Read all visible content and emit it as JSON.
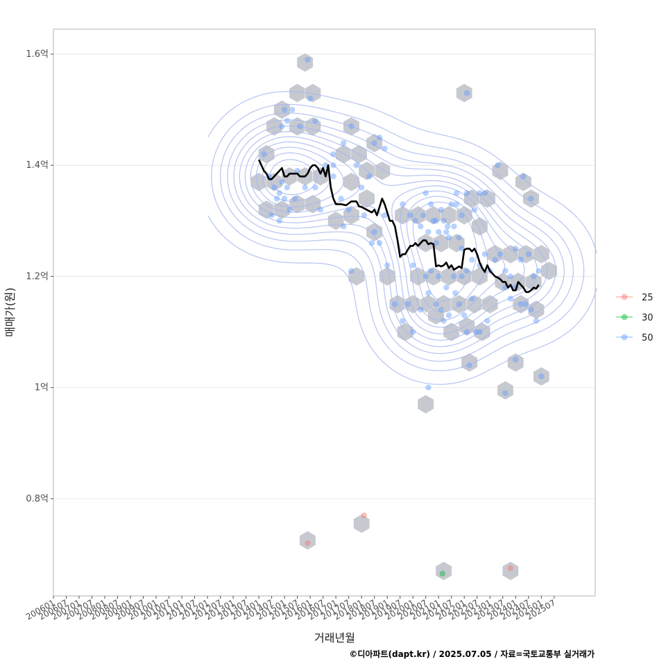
{
  "chart_data": {
    "type": "scatter",
    "title": "",
    "xlabel": "거래년월",
    "ylabel": "매매가(원)",
    "caption": "©디아파트(dapt.kr) / 2025.07.05 / 자료=국토교통부 실거래가",
    "ylim": [
      0.625,
      1.645
    ],
    "y_ticks": [
      {
        "value": 0.8,
        "label": "0.8억"
      },
      {
        "value": 1.0,
        "label": "1억"
      },
      {
        "value": 1.2,
        "label": "1.2억"
      },
      {
        "value": 1.4,
        "label": "1.4억"
      },
      {
        "value": 1.6,
        "label": "1.6억"
      }
    ],
    "x_ticks": [
      "200601",
      "200607",
      "200701",
      "200707",
      "200801",
      "200807",
      "200901",
      "200907",
      "201001",
      "201007",
      "201101",
      "201107",
      "201201",
      "201207",
      "201301",
      "201307",
      "201401",
      "201407",
      "201501",
      "201507",
      "201601",
      "201607",
      "201701",
      "201707",
      "201801",
      "201807",
      "201901",
      "201907",
      "202001",
      "202007",
      "202101",
      "202107",
      "202201",
      "202207",
      "202301",
      "202307",
      "202401",
      "202407",
      "202501",
      "202507"
    ],
    "legend": {
      "position": "right",
      "entries": [
        {
          "label": "25",
          "color": "#F8766D"
        },
        {
          "label": "30",
          "color": "#00BA38"
        },
        {
          "label": "50",
          "color": "#619CFF"
        }
      ]
    },
    "series": [
      {
        "name": "25",
        "color": "#F8766D",
        "points": [
          [
            2015.9,
            0.72
          ],
          [
            2018.1,
            0.77
          ],
          [
            2023.8,
            0.675
          ]
        ]
      },
      {
        "name": "30",
        "color": "#00BA38",
        "points": [
          [
            2021.15,
            0.665
          ]
        ]
      },
      {
        "name": "50",
        "color": "#619CFF",
        "points": [
          [
            2015.9,
            1.59
          ],
          [
            2016.0,
            1.52
          ],
          [
            2016.2,
            1.48
          ],
          [
            2015.6,
            1.47
          ],
          [
            2015.3,
            1.5
          ],
          [
            2015.1,
            1.48
          ],
          [
            2014.9,
            1.47
          ],
          [
            2015.0,
            1.5
          ],
          [
            2014.2,
            1.42
          ],
          [
            2014.4,
            1.38
          ],
          [
            2014.6,
            1.36
          ],
          [
            2014.7,
            1.34
          ],
          [
            2014.8,
            1.35
          ],
          [
            2014.9,
            1.37
          ],
          [
            2015.1,
            1.36
          ],
          [
            2015.2,
            1.32
          ],
          [
            2015.4,
            1.34
          ],
          [
            2015.0,
            1.34
          ],
          [
            2014.5,
            1.31
          ],
          [
            2014.8,
            1.3
          ],
          [
            2015.5,
            1.39
          ],
          [
            2015.8,
            1.36
          ],
          [
            2016.2,
            1.36
          ],
          [
            2016.4,
            1.32
          ],
          [
            2016.6,
            1.4
          ],
          [
            2016.9,
            1.4
          ],
          [
            2016.9,
            1.38
          ],
          [
            2017.3,
            1.44
          ],
          [
            2017.6,
            1.47
          ],
          [
            2017.8,
            1.4
          ],
          [
            2018.0,
            1.36
          ],
          [
            2018.3,
            1.38
          ],
          [
            2018.5,
            1.44
          ],
          [
            2018.7,
            1.45
          ],
          [
            2018.9,
            1.43
          ],
          [
            2018.1,
            1.31
          ],
          [
            2017.5,
            1.32
          ],
          [
            2017.2,
            1.34
          ],
          [
            2017.3,
            1.29
          ],
          [
            2018.5,
            1.28
          ],
          [
            2018.7,
            1.26
          ],
          [
            2018.9,
            1.31
          ],
          [
            2018.4,
            1.26
          ],
          [
            2019.0,
            1.22
          ],
          [
            2017.6,
            1.21
          ],
          [
            2016.9,
            1.42
          ],
          [
            2019.6,
            1.33
          ],
          [
            2019.9,
            1.31
          ],
          [
            2020.1,
            1.3
          ],
          [
            2020.3,
            1.29
          ],
          [
            2020.5,
            1.35
          ],
          [
            2020.7,
            1.33
          ],
          [
            2020.9,
            1.3
          ],
          [
            2021.1,
            1.32
          ],
          [
            2021.3,
            1.28
          ],
          [
            2021.5,
            1.33
          ],
          [
            2021.7,
            1.35
          ],
          [
            2021.9,
            1.31
          ],
          [
            2022.1,
            1.35
          ],
          [
            2022.4,
            1.32
          ],
          [
            2022.6,
            1.35
          ],
          [
            2022.8,
            1.35
          ],
          [
            2020.4,
            1.31
          ],
          [
            2020.6,
            1.28
          ],
          [
            2020.8,
            1.3
          ],
          [
            2021.0,
            1.28
          ],
          [
            2021.2,
            1.3
          ],
          [
            2021.4,
            1.27
          ],
          [
            2021.6,
            1.29
          ],
          [
            2021.8,
            1.27
          ],
          [
            2021.7,
            1.33
          ],
          [
            2021.35,
            1.29
          ],
          [
            2020.9,
            1.26
          ],
          [
            2021.9,
            1.25
          ],
          [
            2020.0,
            1.22
          ],
          [
            2020.5,
            1.2
          ],
          [
            2020.7,
            1.21
          ],
          [
            2021.0,
            1.2
          ],
          [
            2021.3,
            1.18
          ],
          [
            2021.6,
            1.2
          ],
          [
            2021.9,
            1.2
          ],
          [
            2022.1,
            1.21
          ],
          [
            2022.3,
            1.23
          ],
          [
            2022.6,
            1.22
          ],
          [
            2022.8,
            1.24
          ],
          [
            2023.0,
            1.21
          ],
          [
            2023.2,
            1.23
          ],
          [
            2023.4,
            1.24
          ],
          [
            2023.6,
            1.21
          ],
          [
            2023.8,
            1.2
          ],
          [
            2024.0,
            1.25
          ],
          [
            2024.2,
            1.23
          ],
          [
            2024.5,
            1.24
          ],
          [
            2024.9,
            1.21
          ],
          [
            2023.6,
            1.18
          ],
          [
            2023.8,
            1.16
          ],
          [
            2024.0,
            1.18
          ],
          [
            2024.2,
            1.15
          ],
          [
            2024.4,
            1.15
          ],
          [
            2024.7,
            1.2
          ],
          [
            2019.3,
            1.15
          ],
          [
            2019.6,
            1.12
          ],
          [
            2019.8,
            1.15
          ],
          [
            2020.0,
            1.1
          ],
          [
            2020.3,
            1.14
          ],
          [
            2020.6,
            1.17
          ],
          [
            2020.9,
            1.15
          ],
          [
            2021.1,
            1.14
          ],
          [
            2021.2,
            1.12
          ],
          [
            2021.4,
            1.13
          ],
          [
            2021.65,
            1.17
          ],
          [
            2021.8,
            1.15
          ],
          [
            2022.0,
            1.13
          ],
          [
            2022.3,
            1.16
          ],
          [
            2022.6,
            1.1
          ],
          [
            2022.9,
            1.12
          ],
          [
            2022.1,
            1.1
          ],
          [
            2022.45,
            1.1
          ],
          [
            2024.6,
            1.14
          ],
          [
            2024.8,
            1.12
          ],
          [
            2022.1,
            1.53
          ],
          [
            2023.3,
            1.4
          ],
          [
            2024.3,
            1.38
          ],
          [
            2024.6,
            1.34
          ],
          [
            2020.6,
            1.0
          ],
          [
            2022.2,
            1.04
          ],
          [
            2024.0,
            1.05
          ],
          [
            2023.6,
            0.99
          ],
          [
            2025.0,
            1.02
          ]
        ]
      }
    ],
    "trend_line": [
      [
        2014.0,
        1.41
      ],
      [
        2014.1,
        1.4
      ],
      [
        2014.2,
        1.39
      ],
      [
        2014.3,
        1.385
      ],
      [
        2014.4,
        1.375
      ],
      [
        2014.5,
        1.375
      ],
      [
        2014.6,
        1.38
      ],
      [
        2014.7,
        1.385
      ],
      [
        2014.8,
        1.39
      ],
      [
        2014.9,
        1.395
      ],
      [
        2015.0,
        1.38
      ],
      [
        2015.1,
        1.38
      ],
      [
        2015.2,
        1.385
      ],
      [
        2015.3,
        1.385
      ],
      [
        2015.4,
        1.385
      ],
      [
        2015.5,
        1.385
      ],
      [
        2015.6,
        1.38
      ],
      [
        2015.7,
        1.38
      ],
      [
        2015.8,
        1.38
      ],
      [
        2015.9,
        1.385
      ],
      [
        2016.0,
        1.395
      ],
      [
        2016.1,
        1.4
      ],
      [
        2016.2,
        1.4
      ],
      [
        2016.3,
        1.395
      ],
      [
        2016.4,
        1.385
      ],
      [
        2016.5,
        1.395
      ],
      [
        2016.6,
        1.38
      ],
      [
        2016.7,
        1.4
      ],
      [
        2016.8,
        1.36
      ],
      [
        2016.9,
        1.34
      ],
      [
        2017.0,
        1.33
      ],
      [
        2017.2,
        1.33
      ],
      [
        2017.4,
        1.328
      ],
      [
        2017.6,
        1.335
      ],
      [
        2017.8,
        1.335
      ],
      [
        2017.9,
        1.326
      ],
      [
        2018.0,
        1.325
      ],
      [
        2018.2,
        1.32
      ],
      [
        2018.4,
        1.315
      ],
      [
        2018.5,
        1.32
      ],
      [
        2018.6,
        1.31
      ],
      [
        2018.7,
        1.325
      ],
      [
        2018.8,
        1.34
      ],
      [
        2018.9,
        1.33
      ],
      [
        2019.0,
        1.315
      ],
      [
        2019.1,
        1.3
      ],
      [
        2019.2,
        1.3
      ],
      [
        2019.3,
        1.29
      ],
      [
        2019.4,
        1.265
      ],
      [
        2019.5,
        1.235
      ],
      [
        2019.6,
        1.24
      ],
      [
        2019.7,
        1.24
      ],
      [
        2019.8,
        1.248
      ],
      [
        2019.9,
        1.255
      ],
      [
        2020.0,
        1.255
      ],
      [
        2020.1,
        1.26
      ],
      [
        2020.2,
        1.255
      ],
      [
        2020.3,
        1.26
      ],
      [
        2020.4,
        1.265
      ],
      [
        2020.5,
        1.265
      ],
      [
        2020.6,
        1.258
      ],
      [
        2020.7,
        1.26
      ],
      [
        2020.8,
        1.258
      ],
      [
        2020.9,
        1.218
      ],
      [
        2021.0,
        1.22
      ],
      [
        2021.1,
        1.218
      ],
      [
        2021.2,
        1.22
      ],
      [
        2021.3,
        1.225
      ],
      [
        2021.4,
        1.215
      ],
      [
        2021.5,
        1.22
      ],
      [
        2021.6,
        1.212
      ],
      [
        2021.7,
        1.215
      ],
      [
        2021.8,
        1.218
      ],
      [
        2021.9,
        1.215
      ],
      [
        2022.0,
        1.248
      ],
      [
        2022.1,
        1.25
      ],
      [
        2022.2,
        1.25
      ],
      [
        2022.3,
        1.245
      ],
      [
        2022.4,
        1.25
      ],
      [
        2022.5,
        1.24
      ],
      [
        2022.6,
        1.225
      ],
      [
        2022.7,
        1.215
      ],
      [
        2022.8,
        1.208
      ],
      [
        2022.9,
        1.22
      ],
      [
        2023.0,
        1.21
      ],
      [
        2023.1,
        1.205
      ],
      [
        2023.2,
        1.2
      ],
      [
        2023.3,
        1.198
      ],
      [
        2023.4,
        1.195
      ],
      [
        2023.5,
        1.19
      ],
      [
        2023.6,
        1.19
      ],
      [
        2023.7,
        1.18
      ],
      [
        2023.8,
        1.185
      ],
      [
        2023.9,
        1.175
      ],
      [
        2024.0,
        1.175
      ],
      [
        2024.1,
        1.19
      ],
      [
        2024.2,
        1.185
      ],
      [
        2024.3,
        1.18
      ],
      [
        2024.4,
        1.172
      ],
      [
        2024.5,
        1.172
      ],
      [
        2024.6,
        1.175
      ],
      [
        2024.7,
        1.18
      ],
      [
        2024.8,
        1.178
      ],
      [
        2024.9,
        1.185
      ]
    ],
    "hex_bins": [
      [
        2015.8,
        1.585
      ],
      [
        2015.5,
        1.53
      ],
      [
        2016.1,
        1.53
      ],
      [
        2014.9,
        1.5
      ],
      [
        2015.5,
        1.47
      ],
      [
        2016.1,
        1.47
      ],
      [
        2014.6,
        1.47
      ],
      [
        2014.3,
        1.42
      ],
      [
        2014.0,
        1.37
      ],
      [
        2014.6,
        1.37
      ],
      [
        2014.3,
        1.32
      ],
      [
        2015.2,
        1.38
      ],
      [
        2015.8,
        1.38
      ],
      [
        2016.4,
        1.38
      ],
      [
        2015.5,
        1.33
      ],
      [
        2016.1,
        1.33
      ],
      [
        2014.9,
        1.32
      ],
      [
        2017.6,
        1.47
      ],
      [
        2017.3,
        1.42
      ],
      [
        2017.9,
        1.42
      ],
      [
        2018.5,
        1.44
      ],
      [
        2018.8,
        1.39
      ],
      [
        2018.2,
        1.39
      ],
      [
        2017.6,
        1.37
      ],
      [
        2018.2,
        1.34
      ],
      [
        2017.0,
        1.3
      ],
      [
        2017.6,
        1.31
      ],
      [
        2018.5,
        1.28
      ],
      [
        2017.8,
        1.2
      ],
      [
        2019.0,
        1.2
      ],
      [
        2019.6,
        1.31
      ],
      [
        2020.2,
        1.31
      ],
      [
        2020.8,
        1.31
      ],
      [
        2021.4,
        1.31
      ],
      [
        2022.0,
        1.31
      ],
      [
        2020.5,
        1.26
      ],
      [
        2021.1,
        1.26
      ],
      [
        2021.7,
        1.26
      ],
      [
        2022.3,
        1.34
      ],
      [
        2022.9,
        1.34
      ],
      [
        2022.6,
        1.29
      ],
      [
        2023.4,
        1.39
      ],
      [
        2024.3,
        1.37
      ],
      [
        2024.6,
        1.34
      ],
      [
        2020.2,
        1.2
      ],
      [
        2020.8,
        1.2
      ],
      [
        2021.4,
        1.2
      ],
      [
        2022.0,
        1.2
      ],
      [
        2022.6,
        1.2
      ],
      [
        2023.2,
        1.24
      ],
      [
        2023.8,
        1.24
      ],
      [
        2024.4,
        1.24
      ],
      [
        2025.0,
        1.24
      ],
      [
        2023.5,
        1.19
      ],
      [
        2024.1,
        1.19
      ],
      [
        2024.7,
        1.19
      ],
      [
        2025.3,
        1.21
      ],
      [
        2019.4,
        1.15
      ],
      [
        2020.0,
        1.15
      ],
      [
        2020.6,
        1.15
      ],
      [
        2021.2,
        1.15
      ],
      [
        2021.8,
        1.15
      ],
      [
        2022.4,
        1.15
      ],
      [
        2023.0,
        1.15
      ],
      [
        2024.2,
        1.15
      ],
      [
        2024.8,
        1.14
      ],
      [
        2019.7,
        1.1
      ],
      [
        2020.9,
        1.13
      ],
      [
        2021.5,
        1.1
      ],
      [
        2022.1,
        1.11
      ],
      [
        2022.7,
        1.1
      ],
      [
        2022.0,
        1.53
      ],
      [
        2020.5,
        0.97
      ],
      [
        2022.2,
        1.045
      ],
      [
        2024.0,
        1.045
      ],
      [
        2023.6,
        0.995
      ],
      [
        2025.0,
        1.02
      ],
      [
        2015.9,
        0.725
      ],
      [
        2018.0,
        0.755
      ],
      [
        2021.2,
        0.67
      ],
      [
        2023.8,
        0.67
      ]
    ],
    "density_centers": [
      {
        "x": 2014.9,
        "y": 1.38,
        "w": 0.55
      },
      {
        "x": 2021.1,
        "y": 1.295,
        "w": 0.6
      },
      {
        "x": 2021.0,
        "y": 1.15,
        "w": 0.45
      },
      {
        "x": 2024.3,
        "y": 1.21,
        "w": 0.35
      },
      {
        "x": 2017.7,
        "y": 1.37,
        "w": 0.3
      }
    ]
  }
}
